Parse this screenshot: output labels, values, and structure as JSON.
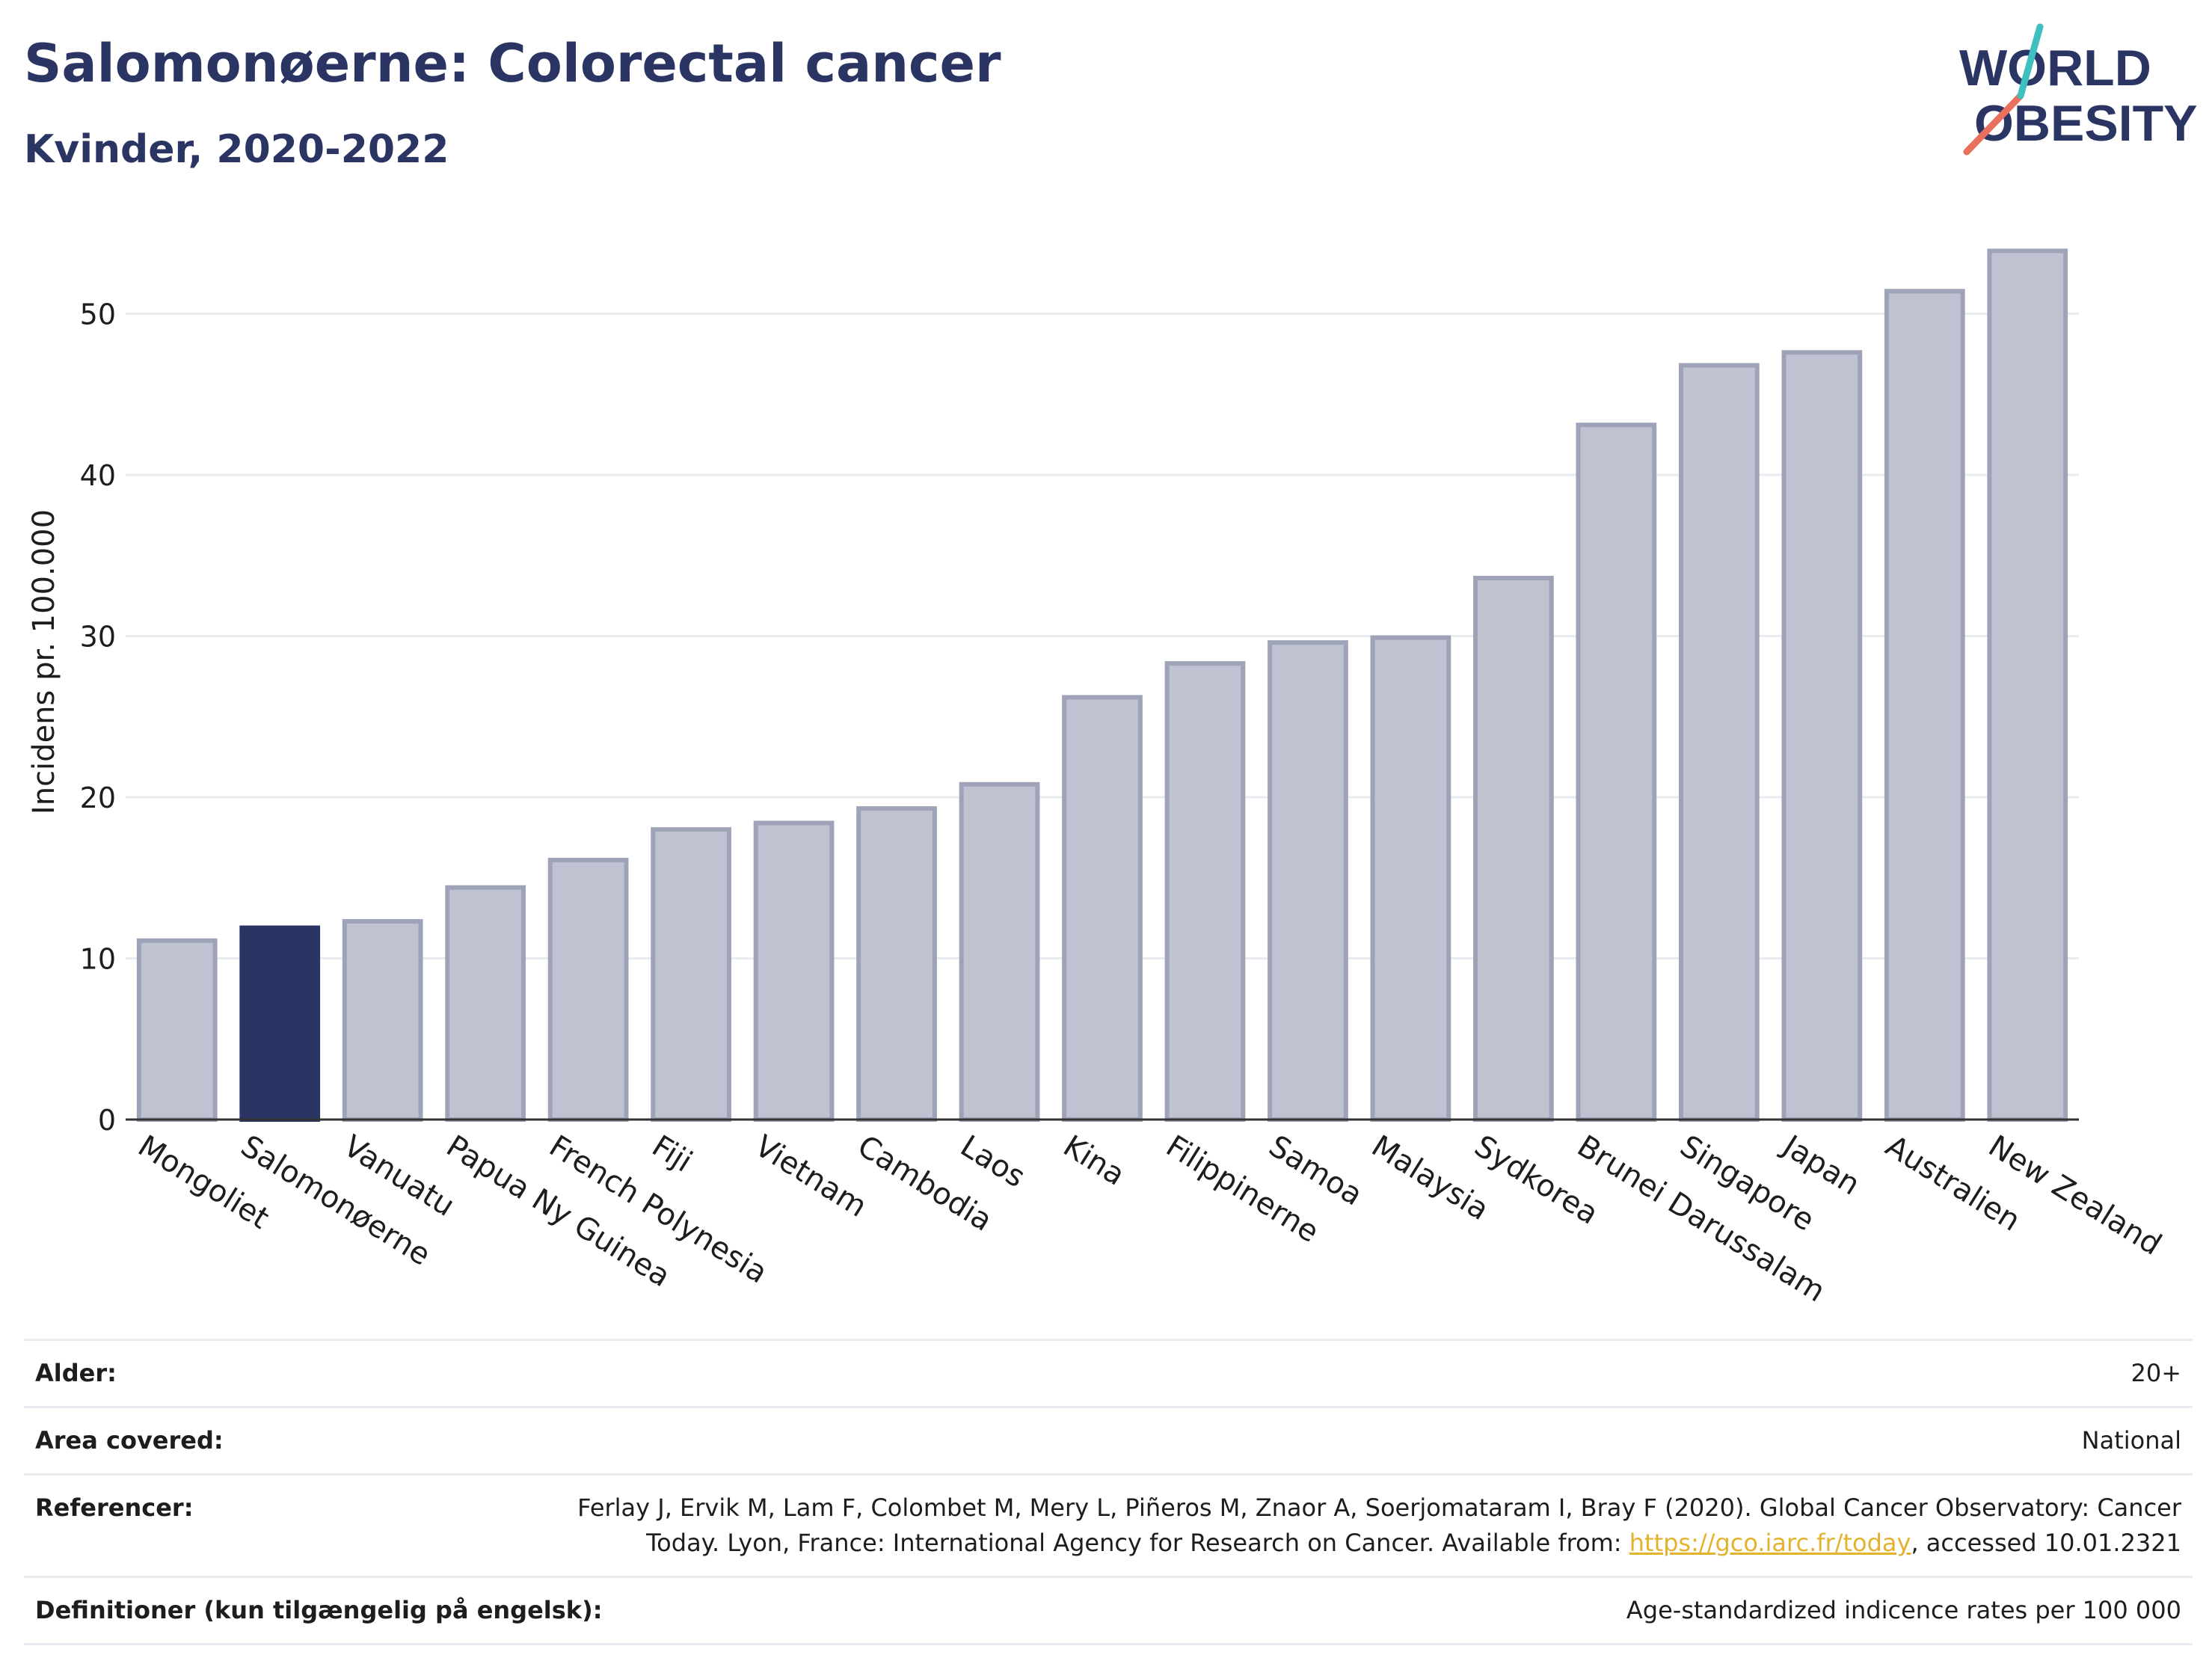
{
  "header": {
    "title": "Salomonøerne: Colorectal cancer",
    "subtitle": "Kvinder, 2020-2022"
  },
  "logo": {
    "line1": "WORLD",
    "line2": "OBESITY"
  },
  "chart_data": {
    "type": "bar",
    "title": "Salomonøerne: Colorectal cancer",
    "subtitle": "Kvinder, 2020-2022",
    "xlabel": "",
    "ylabel": "Incidens pr. 100.000",
    "ylim": [
      0,
      56
    ],
    "yticks": [
      0,
      10,
      20,
      30,
      40,
      50
    ],
    "grid": true,
    "highlight": "Salomonøerne",
    "categories": [
      "Mongoliet",
      "Salomonøerne",
      "Vanuatu",
      "Papua Ny Guinea",
      "French Polynesia",
      "Fiji",
      "Vietnam",
      "Cambodia",
      "Laos",
      "Kina",
      "Filippinerne",
      "Samoa",
      "Malaysia",
      "Sydkorea",
      "Brunei Darussalam",
      "Singapore",
      "Japan",
      "Australien",
      "New Zealand"
    ],
    "values": [
      11.1,
      11.9,
      12.3,
      14.4,
      16.1,
      18.0,
      18.4,
      19.3,
      20.8,
      26.2,
      28.3,
      29.6,
      29.9,
      33.6,
      43.1,
      46.8,
      47.6,
      51.4,
      53.9
    ]
  },
  "colors": {
    "bar": "#bfc2d0",
    "bar_border": "#9ea3b8",
    "highlight": "#2b3563",
    "title": "#2b3563",
    "grid": "#e9edf1",
    "link": "#e3b22e",
    "logo_red": "#e8705d",
    "logo_teal": "#3fbfbf"
  },
  "meta": {
    "age": {
      "label": "Alder:",
      "value": "20+"
    },
    "area": {
      "label": "Area covered:",
      "value": "National"
    },
    "refs": {
      "label": "Referencer:",
      "text_before": "Ferlay J, Ervik M, Lam F, Colombet M, Mery L, Piñeros M, Znaor A, Soerjomataram I, Bray F (2020). Global Cancer Observatory: Cancer Today. Lyon, France: International Agency for Research on Cancer. Available from: ",
      "link": "https://gco.iarc.fr/today",
      "text_after": ", accessed 10.01.2321"
    },
    "definitions": {
      "label": "Definitioner (kun tilgængelig på engelsk):",
      "value": "Age-standardized indicence rates per 100 000"
    }
  }
}
